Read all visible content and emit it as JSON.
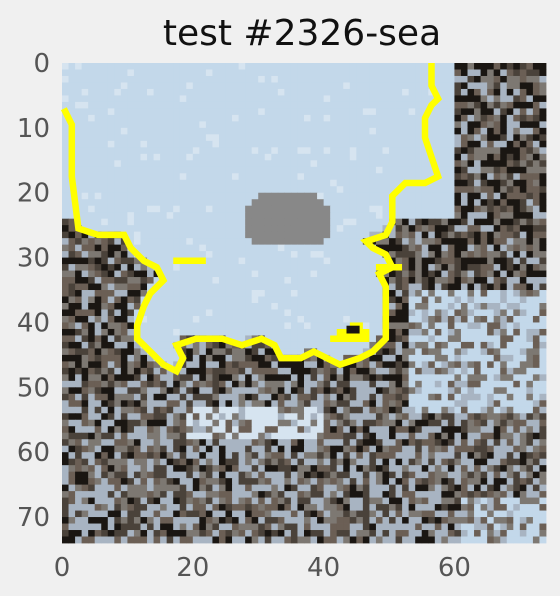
{
  "chart_data": {
    "type": "heatmap",
    "title": "test #2326-sea",
    "xlabel": "",
    "ylabel": "",
    "xlim": [
      0,
      74
    ],
    "ylim": [
      74,
      0
    ],
    "grid": false,
    "x_ticks": [
      "0",
      "20",
      "40",
      "60"
    ],
    "y_ticks": [
      "0",
      "10",
      "20",
      "30",
      "40",
      "50",
      "60",
      "70"
    ],
    "x_tick_values": [
      0,
      20,
      40,
      60
    ],
    "y_tick_values": [
      0,
      10,
      20,
      30,
      40,
      50,
      60,
      70
    ],
    "image_size": [
      74,
      74
    ],
    "image_description": "pixelated photo of a rocky shoreline with pale blue sea and sky, sea region outlined in yellow",
    "overlay": {
      "name": "sea boundary",
      "color": "#ffff00",
      "points": [
        [
          0,
          7
        ],
        [
          1,
          9
        ],
        [
          1,
          17
        ],
        [
          2,
          25
        ],
        [
          5,
          26
        ],
        [
          9,
          26
        ],
        [
          10,
          28
        ],
        [
          12,
          30
        ],
        [
          14,
          31
        ],
        [
          15,
          33
        ],
        [
          13,
          35
        ],
        [
          12,
          37
        ],
        [
          11,
          40
        ],
        [
          11,
          42
        ],
        [
          13,
          44
        ],
        [
          15,
          46
        ],
        [
          17,
          47
        ],
        [
          18,
          45
        ],
        [
          17,
          43
        ],
        [
          20,
          42
        ],
        [
          24,
          42
        ],
        [
          27,
          43
        ],
        [
          30,
          42
        ],
        [
          32,
          43
        ],
        [
          33,
          45
        ],
        [
          36,
          45
        ],
        [
          38,
          44
        ],
        [
          40,
          45
        ],
        [
          42,
          46
        ],
        [
          45,
          45
        ],
        [
          47,
          44
        ],
        [
          49,
          42
        ],
        [
          49,
          38
        ],
        [
          49,
          34
        ],
        [
          48,
          32
        ],
        [
          50,
          31
        ],
        [
          49,
          29
        ],
        [
          47,
          28
        ],
        [
          46,
          27
        ],
        [
          49,
          26
        ],
        [
          50,
          24
        ],
        [
          50,
          20
        ],
        [
          52,
          18
        ],
        [
          55,
          18
        ],
        [
          57,
          17
        ],
        [
          56,
          14
        ],
        [
          55,
          11
        ],
        [
          55,
          8
        ],
        [
          56,
          6
        ],
        [
          57,
          5
        ],
        [
          56,
          3
        ],
        [
          56,
          0
        ]
      ],
      "segments": [
        [
          [
            17,
            30
          ],
          [
            21,
            30
          ]
        ],
        [
          [
            42,
            41
          ],
          [
            46,
            41
          ]
        ],
        [
          [
            41,
            42
          ],
          [
            46,
            42
          ]
        ],
        [
          [
            44,
            40
          ],
          [
            45,
            40
          ]
        ],
        [
          [
            48,
            31
          ],
          [
            51,
            31
          ]
        ]
      ]
    },
    "palette": {
      "sea": "#c3d8ea",
      "sea_light": "#d6e4f0",
      "rock_dark": "#1a1612",
      "rock_mid": "#4a423a",
      "rock_brown": "#6b5f55",
      "rock_grey": "#7d7872",
      "mist": "#888888",
      "foam": "#a8b4c2",
      "overlay": "#ffff00",
      "background": "#f0f0f0",
      "tick_text": "#555555",
      "title_text": "#111111"
    }
  }
}
